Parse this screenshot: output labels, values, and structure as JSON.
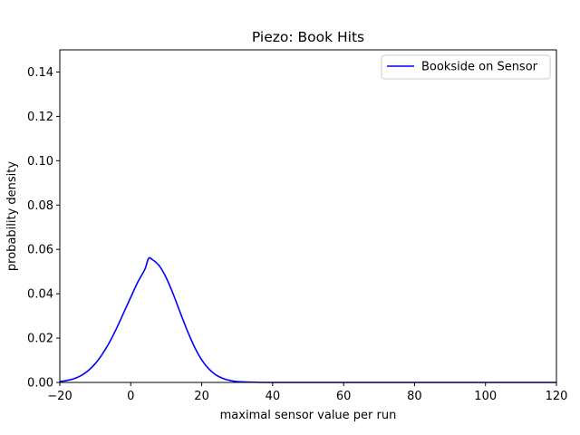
{
  "chart_data": {
    "type": "line",
    "title": "Piezo: Book Hits",
    "xlabel": "maximal sensor value per run",
    "ylabel": "probability density",
    "xlim": [
      -20,
      120
    ],
    "ylim": [
      0,
      0.15
    ],
    "xticks": [
      "−20",
      "0",
      "20",
      "40",
      "60",
      "80",
      "100",
      "120"
    ],
    "yticks": [
      "0.00",
      "0.02",
      "0.04",
      "0.06",
      "0.08",
      "0.10",
      "0.12",
      "0.14"
    ],
    "grid": false,
    "legend_position": "top-right",
    "series": [
      {
        "name": "Bookside on Sensor",
        "color": "#0000ff",
        "x": [
          -20,
          -18,
          -16,
          -14,
          -12,
          -10,
          -8,
          -6,
          -4,
          -2,
          0,
          2,
          4,
          5,
          6,
          8,
          10,
          12,
          14,
          16,
          18,
          20,
          22,
          24,
          26,
          28,
          30,
          35,
          40,
          50,
          60,
          80,
          100,
          120
        ],
        "y": [
          0.0004,
          0.0009,
          0.0017,
          0.0031,
          0.0053,
          0.0085,
          0.0128,
          0.0181,
          0.0244,
          0.0314,
          0.0384,
          0.0453,
          0.0511,
          0.0559,
          0.0555,
          0.0527,
          0.0472,
          0.0397,
          0.0313,
          0.0231,
          0.0159,
          0.0102,
          0.0061,
          0.0034,
          0.0018,
          0.0009,
          0.0004,
          0.0001,
          0.0,
          0.0,
          0.0,
          0.0,
          0.0,
          0.0
        ]
      }
    ]
  }
}
